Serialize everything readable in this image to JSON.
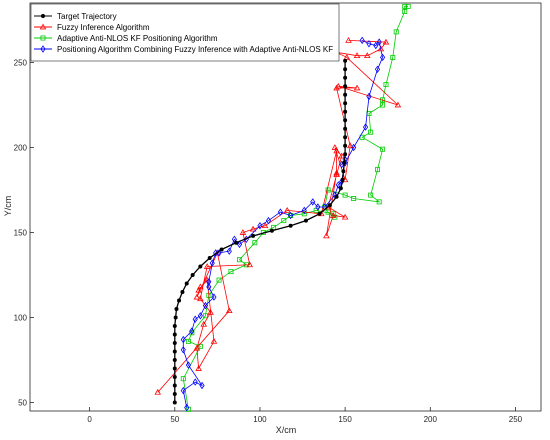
{
  "chart_data": {
    "type": "line",
    "title": "",
    "xlabel": "X/cm",
    "ylabel": "Y/cm",
    "xlim": [
      -35,
      265
    ],
    "ylim": [
      45,
      285
    ],
    "xticks": [
      0,
      50,
      100,
      150,
      200,
      250
    ],
    "yticks": [
      50,
      100,
      150,
      200,
      250
    ],
    "grid": false,
    "legend_position": "top-left",
    "series": [
      {
        "name": "Target Trajectory",
        "color": "#000000",
        "marker": "filled-circle",
        "x": [
          50,
          50,
          50,
          50,
          50,
          50,
          50,
          50,
          50,
          50,
          50.5,
          51,
          52.5,
          54.5,
          57,
          60.5,
          65,
          70.5,
          77.5,
          86,
          96,
          107,
          118,
          127,
          135,
          141,
          145,
          147.5,
          148.5,
          149,
          149.5,
          150,
          150,
          150,
          150,
          150,
          150,
          150,
          150,
          150,
          150,
          150,
          150
        ],
        "y": [
          50,
          55,
          60,
          65,
          70,
          75,
          80,
          85,
          90,
          95,
          100,
          105,
          110,
          115,
          120,
          125,
          130,
          135,
          140,
          144,
          148,
          151,
          154,
          157,
          161,
          166,
          171,
          176,
          181,
          186,
          191,
          196,
          201,
          206,
          211,
          216,
          221,
          226,
          231,
          236,
          241,
          246,
          251
        ]
      },
      {
        "name": "Fuzzy Inference Algorithm",
        "color": "#ff0000",
        "marker": "triangle",
        "x": [
          152,
          174,
          171,
          163,
          157,
          145,
          151,
          181,
          146,
          157,
          145,
          153,
          150,
          144,
          148,
          145,
          140,
          150,
          143,
          139,
          145,
          145,
          136,
          116,
          103,
          96,
          90,
          94,
          69,
          65,
          71,
          67,
          63,
          64,
          73,
          69,
          64,
          65,
          63,
          75,
          82,
          40
        ],
        "y": [
          263,
          262,
          258,
          254,
          254,
          256,
          253,
          225,
          236,
          235,
          235,
          201,
          181,
          200,
          195,
          184,
          165,
          159,
          160,
          148,
          185,
          198,
          161,
          163,
          154,
          152,
          150,
          131,
          130,
          111,
          103,
          96,
          82,
          70,
          86,
          122,
          116,
          118,
          112,
          138,
          104,
          56
        ]
      },
      {
        "name": "Adaptive Anti-NLOS KF Positioning Algorithm",
        "color": "#00cc00",
        "marker": "square",
        "x": [
          187,
          185,
          185,
          180,
          178,
          174,
          172,
          172,
          164,
          165,
          160,
          172,
          169,
          165,
          170,
          155,
          150,
          140,
          138,
          140,
          144,
          143,
          133,
          126,
          118,
          114,
          108,
          102,
          97,
          88,
          92,
          83,
          76,
          70,
          68,
          60,
          58,
          65,
          55,
          58
        ],
        "y": [
          283,
          283,
          280,
          268,
          253,
          237,
          228,
          225,
          220,
          209,
          206,
          199,
          187,
          172,
          168,
          170,
          172,
          175,
          165,
          162,
          159,
          161,
          163,
          161,
          160,
          157,
          153,
          150,
          144,
          134,
          131,
          127,
          122,
          113,
          101,
          91,
          86,
          83,
          64,
          46
        ]
      },
      {
        "name": "Positioning Algorithm Combining Fuzzy Inference with Adaptive Anti-NLOS KF",
        "color": "#0000ff",
        "marker": "diamond",
        "x": [
          160,
          164,
          168,
          170,
          172,
          169,
          164,
          162,
          155,
          150,
          148,
          150,
          148,
          146,
          144,
          138,
          134,
          131,
          126,
          118,
          112,
          105,
          100,
          92,
          88,
          85,
          82,
          76,
          74,
          72,
          70,
          70,
          73,
          68,
          65,
          62,
          60,
          55,
          55,
          58,
          66,
          62,
          55,
          57
        ],
        "y": [
          263,
          261,
          260,
          262,
          253,
          246,
          230,
          212,
          200,
          191,
          190,
          193,
          180,
          178,
          172,
          165,
          165,
          168,
          163,
          160,
          162,
          157,
          154,
          146,
          143,
          146,
          139,
          138,
          138,
          132,
          121,
          118,
          112,
          107,
          101,
          99,
          92,
          87,
          81,
          72,
          60,
          62,
          57,
          47
        ]
      }
    ]
  }
}
